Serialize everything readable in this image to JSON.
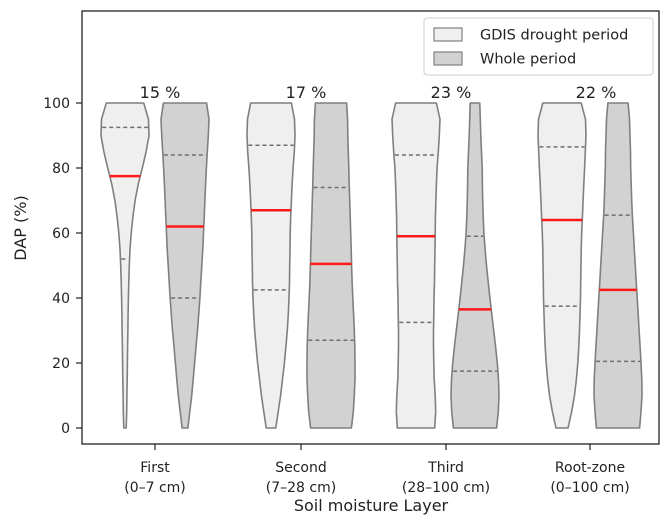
{
  "chart_data": {
    "type": "violin",
    "xlabel": "Soil moisture Layer",
    "ylabel": "DAP (%)",
    "ylim": [
      -5,
      108
    ],
    "yticks": [
      0,
      20,
      40,
      60,
      80,
      100
    ],
    "grid": false,
    "legend_position": "top-right",
    "categories": [
      {
        "line1": "First",
        "line2": "(0–7 cm)"
      },
      {
        "line1": "Second",
        "line2": "(7–28 cm)"
      },
      {
        "line1": "Third",
        "line2": "(28–100 cm)"
      },
      {
        "line1": "Root-zone",
        "line2": "(0–100 cm)"
      }
    ],
    "annotations": [
      "15 %",
      "17 %",
      "23 %",
      "22 %"
    ],
    "series": [
      {
        "name": "GDIS drought period",
        "color": "#efefef",
        "median": [
          77.5,
          67,
          59,
          64
        ],
        "q1": [
          52,
          42.5,
          32.5,
          37.5
        ],
        "q3": [
          92.5,
          87,
          84,
          86.5
        ],
        "density": [
          [
            [
              0,
              0.05
            ],
            [
              5,
              0.07
            ],
            [
              10,
              0.08
            ],
            [
              15,
              0.09
            ],
            [
              20,
              0.1
            ],
            [
              25,
              0.11
            ],
            [
              30,
              0.12
            ],
            [
              35,
              0.13
            ],
            [
              40,
              0.14
            ],
            [
              45,
              0.16
            ],
            [
              50,
              0.18
            ],
            [
              55,
              0.21
            ],
            [
              60,
              0.26
            ],
            [
              65,
              0.33
            ],
            [
              70,
              0.42
            ],
            [
              75,
              0.55
            ],
            [
              80,
              0.72
            ],
            [
              85,
              0.88
            ],
            [
              90,
              1.0
            ],
            [
              95,
              0.98
            ],
            [
              100,
              0.78
            ]
          ],
          [
            [
              0,
              0.2
            ],
            [
              5,
              0.3
            ],
            [
              10,
              0.4
            ],
            [
              15,
              0.48
            ],
            [
              20,
              0.56
            ],
            [
              25,
              0.62
            ],
            [
              30,
              0.68
            ],
            [
              35,
              0.72
            ],
            [
              40,
              0.75
            ],
            [
              45,
              0.77
            ],
            [
              50,
              0.78
            ],
            [
              55,
              0.79
            ],
            [
              60,
              0.8
            ],
            [
              65,
              0.82
            ],
            [
              70,
              0.85
            ],
            [
              75,
              0.88
            ],
            [
              80,
              0.92
            ],
            [
              85,
              0.97
            ],
            [
              90,
              1.0
            ],
            [
              95,
              0.98
            ],
            [
              100,
              0.85
            ]
          ],
          [
            [
              0,
              0.78
            ],
            [
              5,
              0.82
            ],
            [
              10,
              0.8
            ],
            [
              15,
              0.76
            ],
            [
              20,
              0.74
            ],
            [
              25,
              0.73
            ],
            [
              30,
              0.73
            ],
            [
              35,
              0.74
            ],
            [
              40,
              0.75
            ],
            [
              45,
              0.77
            ],
            [
              50,
              0.78
            ],
            [
              55,
              0.79
            ],
            [
              60,
              0.8
            ],
            [
              65,
              0.81
            ],
            [
              70,
              0.83
            ],
            [
              75,
              0.85
            ],
            [
              80,
              0.88
            ],
            [
              85,
              0.93
            ],
            [
              90,
              0.97
            ],
            [
              95,
              1.0
            ],
            [
              100,
              0.85
            ]
          ],
          [
            [
              0,
              0.25
            ],
            [
              5,
              0.4
            ],
            [
              10,
              0.52
            ],
            [
              15,
              0.6
            ],
            [
              20,
              0.66
            ],
            [
              25,
              0.7
            ],
            [
              30,
              0.73
            ],
            [
              35,
              0.75
            ],
            [
              40,
              0.77
            ],
            [
              45,
              0.78
            ],
            [
              50,
              0.79
            ],
            [
              55,
              0.8
            ],
            [
              60,
              0.82
            ],
            [
              65,
              0.85
            ],
            [
              70,
              0.88
            ],
            [
              75,
              0.91
            ],
            [
              80,
              0.94
            ],
            [
              85,
              0.97
            ],
            [
              90,
              1.0
            ],
            [
              95,
              0.98
            ],
            [
              100,
              0.8
            ]
          ]
        ]
      },
      {
        "name": "Whole period",
        "color": "#d2d2d2",
        "median": [
          62,
          50.5,
          36.5,
          42.5
        ],
        "q1": [
          40,
          27,
          17.5,
          20.5
        ],
        "q3": [
          84,
          74,
          59,
          65.5
        ],
        "density": [
          [
            [
              0,
              0.12
            ],
            [
              5,
              0.2
            ],
            [
              10,
              0.28
            ],
            [
              15,
              0.34
            ],
            [
              20,
              0.4
            ],
            [
              25,
              0.46
            ],
            [
              30,
              0.52
            ],
            [
              35,
              0.57
            ],
            [
              40,
              0.62
            ],
            [
              45,
              0.66
            ],
            [
              50,
              0.7
            ],
            [
              55,
              0.74
            ],
            [
              60,
              0.77
            ],
            [
              65,
              0.8
            ],
            [
              70,
              0.83
            ],
            [
              75,
              0.86
            ],
            [
              80,
              0.89
            ],
            [
              85,
              0.93
            ],
            [
              90,
              0.97
            ],
            [
              95,
              1.0
            ],
            [
              100,
              0.9
            ]
          ],
          [
            [
              0,
              0.85
            ],
            [
              5,
              0.93
            ],
            [
              10,
              0.97
            ],
            [
              15,
              1.0
            ],
            [
              20,
              1.0
            ],
            [
              25,
              0.99
            ],
            [
              30,
              0.97
            ],
            [
              35,
              0.94
            ],
            [
              40,
              0.91
            ],
            [
              45,
              0.88
            ],
            [
              50,
              0.86
            ],
            [
              55,
              0.84
            ],
            [
              60,
              0.82
            ],
            [
              65,
              0.8
            ],
            [
              70,
              0.78
            ],
            [
              75,
              0.76
            ],
            [
              80,
              0.74
            ],
            [
              85,
              0.72
            ],
            [
              90,
              0.7
            ],
            [
              95,
              0.69
            ],
            [
              100,
              0.65
            ]
          ],
          [
            [
              0,
              0.9
            ],
            [
              5,
              0.97
            ],
            [
              10,
              1.0
            ],
            [
              15,
              0.98
            ],
            [
              20,
              0.93
            ],
            [
              25,
              0.86
            ],
            [
              30,
              0.78
            ],
            [
              35,
              0.7
            ],
            [
              40,
              0.62
            ],
            [
              45,
              0.55
            ],
            [
              50,
              0.48
            ],
            [
              55,
              0.42
            ],
            [
              60,
              0.37
            ],
            [
              65,
              0.34
            ],
            [
              70,
              0.32
            ],
            [
              75,
              0.31
            ],
            [
              80,
              0.3
            ],
            [
              85,
              0.27
            ],
            [
              90,
              0.24
            ],
            [
              95,
              0.22
            ],
            [
              100,
              0.2
            ]
          ],
          [
            [
              0,
              0.9
            ],
            [
              5,
              0.96
            ],
            [
              10,
              1.0
            ],
            [
              15,
              0.99
            ],
            [
              20,
              0.96
            ],
            [
              25,
              0.92
            ],
            [
              30,
              0.88
            ],
            [
              35,
              0.84
            ],
            [
              40,
              0.8
            ],
            [
              45,
              0.76
            ],
            [
              50,
              0.72
            ],
            [
              55,
              0.68
            ],
            [
              60,
              0.64
            ],
            [
              65,
              0.6
            ],
            [
              70,
              0.57
            ],
            [
              75,
              0.55
            ],
            [
              80,
              0.53
            ],
            [
              85,
              0.52
            ],
            [
              90,
              0.5
            ],
            [
              95,
              0.48
            ],
            [
              100,
              0.42
            ]
          ]
        ]
      }
    ]
  },
  "style": {
    "median_color": "#ff1a1a",
    "outline_color": "#7f7f7f",
    "quartile_color": "#6e6e6e",
    "axis_color": "#222222"
  }
}
